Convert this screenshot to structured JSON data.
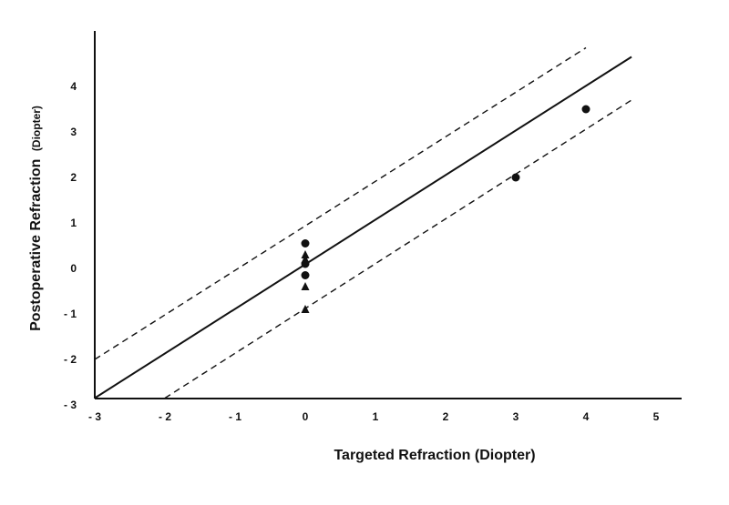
{
  "chart_data": {
    "type": "scatter",
    "title": "",
    "xlabel": "Targeted Refraction (Diopter)",
    "ylabel": {
      "main": "Postoperative Refraction",
      "unit": "(Diopter)"
    },
    "xlim": [
      -3,
      5
    ],
    "ylim": [
      -3,
      5
    ],
    "x_ticks": [
      -3,
      -2,
      -1,
      0,
      1,
      2,
      3,
      4,
      5
    ],
    "x_tick_labels": [
      "- 3",
      "- 2",
      "- 1",
      "0",
      "1",
      "2",
      "3",
      "4",
      "5"
    ],
    "y_ticks": [
      -3,
      -2,
      -1,
      0,
      1,
      2,
      3,
      4
    ],
    "y_tick_labels": [
      "- 3",
      "- 2",
      "- 1",
      "0",
      "1",
      "2",
      "3",
      "4"
    ],
    "grid": false,
    "legend": "none",
    "lines": [
      {
        "style": "solid",
        "x": [
          -3,
          4.65
        ],
        "y": [
          -2.85,
          4.65
        ]
      },
      {
        "style": "dashed",
        "x": [
          -3,
          4.0
        ],
        "y": [
          -2.0,
          4.85
        ]
      },
      {
        "style": "dashed",
        "x": [
          -2.0,
          4.65
        ],
        "y": [
          -2.85,
          3.7
        ]
      }
    ],
    "series": [
      {
        "marker": "circle",
        "x": [
          4.0,
          3.0,
          0.0,
          0.0,
          0.0
        ],
        "y": [
          3.5,
          2.0,
          0.55,
          0.1,
          -0.15
        ]
      },
      {
        "marker": "triangle",
        "x": [
          0.0,
          0.0,
          0.0,
          0.0
        ],
        "y": [
          0.3,
          0.2,
          -0.4,
          -0.9
        ]
      }
    ],
    "colors": {
      "ink": "#111111",
      "background": "#ffffff"
    }
  }
}
